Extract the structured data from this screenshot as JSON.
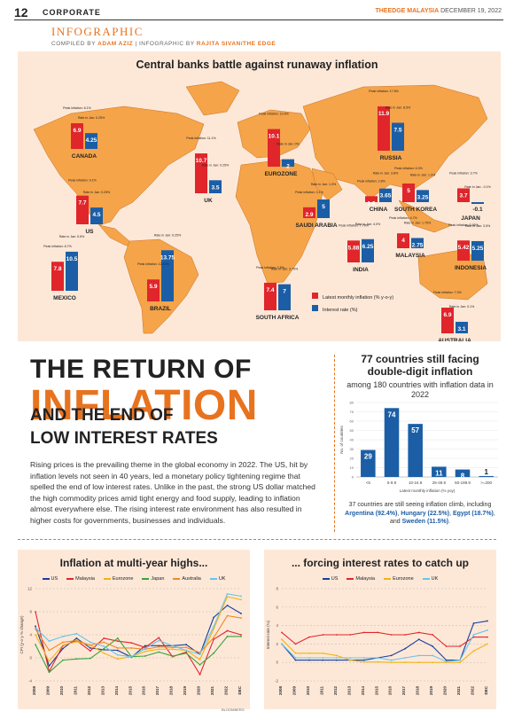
{
  "header": {
    "page_number": "12",
    "section": "CORPORATE",
    "masthead": "THEEDGE MALAYSIA",
    "date": "DECEMBER 19, 2022"
  },
  "kicker": "INFOGRAPHIC",
  "credit": {
    "prefix": "COMPILED BY",
    "compiler": "ADAM AZIZ",
    "mid": "| INFOGRAPHIC BY",
    "designer": "RAJITA SIVAN/THE EDGE"
  },
  "headline": {
    "line1": "THE RETURN OF",
    "line2": "INFLATION",
    "line3": "AND THE END OF",
    "line4": "LOW INTEREST RATES"
  },
  "body": "Rising prices is the prevailing theme in the global economy in 2022. The US, hit by inflation levels not seen in 40 years, led a monetary policy tightening regime that spelled the end of low interest rates. Unlike in the past, the strong US dollar matched the high commodity prices amid tight energy and food supply, leading to inflation almost everywhere else. The rising interest rate environment has also resulted in higher costs for governments, businesses and individuals.",
  "colors": {
    "orange": "#e8731f",
    "red": "#e0252b",
    "blue": "#1b5ea6",
    "map": "#f5a44a",
    "panel": "#fde8d8"
  },
  "chart_data": [
    {
      "type": "bar",
      "title": "Central banks battle against runaway inflation",
      "series": [
        {
          "name": "Latest monthly inflation (% y-o-y)",
          "color": "#e0252b"
        },
        {
          "name": "Interest rate (%)",
          "color": "#1b5ea6"
        }
      ],
      "countries": [
        {
          "name": "CANADA",
          "inflation": 6.9,
          "rate": 4.25,
          "peak_label": "Peak inflation: 8.1%",
          "rate_label": "Rate in Jan: 0.25%"
        },
        {
          "name": "US",
          "inflation": 7.7,
          "rate": 4.5,
          "peak_label": "Peak inflation: 9.1%",
          "rate_label": "Rate in Jan: 0.25%"
        },
        {
          "name": "MEXICO",
          "inflation": 7.8,
          "rate": 10.5,
          "peak_label": "Peak inflation: 8.7%",
          "rate_label": "Rate in Jan: 5.5%"
        },
        {
          "name": "BRAZIL",
          "inflation": 5.9,
          "rate": 13.75,
          "peak_label": "Peak inflation: 12.13%",
          "rate_label": "Rate in Jan: 9.25%"
        },
        {
          "name": "UK",
          "inflation": 10.7,
          "rate": 3.5,
          "peak_label": "Peak inflation: 11.1%",
          "rate_label": "Rate in Jan: 0.25%"
        },
        {
          "name": "EUROZONE",
          "inflation": 10.1,
          "rate": 2,
          "peak_label": "Peak inflation: 10.6%",
          "rate_label": "Rate in Jan: 0%"
        },
        {
          "name": "SAUDI ARABIA",
          "inflation": 2.9,
          "rate": 5,
          "peak_label": "Peak inflation: 3.1%",
          "rate_label": "Rate in Jan: 1.0%"
        },
        {
          "name": "SOUTH AFRICA",
          "inflation": 7.4,
          "rate": 7,
          "peak_label": "Peak inflation: 7.8%",
          "rate_label": "Rate in Jan: 3.75%"
        },
        {
          "name": "RUSSIA",
          "inflation": 11.9,
          "rate": 7.5,
          "peak_label": "Peak inflation: 17.8%",
          "rate_label": "Rate in Jan: 8.5%"
        },
        {
          "name": "CHINA",
          "inflation": 1.6,
          "rate": 3.65,
          "peak_label": "Peak inflation: 2.8%",
          "rate_label": "Rate in Jan: 3.8%"
        },
        {
          "name": "SOUTH KOREA",
          "inflation": 5,
          "rate": 3.25,
          "peak_label": "Peak inflation: 6.3%",
          "rate_label": "Rate in Jan: 1.0%"
        },
        {
          "name": "JAPAN",
          "inflation": 3.7,
          "rate": -0.1,
          "peak_label": "Peak inflation: 3.7%",
          "rate_label": "Rate in Jan: -0.1%"
        },
        {
          "name": "INDIA",
          "inflation": 5.88,
          "rate": 6.25,
          "peak_label": "Peak inflation: 7.79%",
          "rate_label": "Rate in Jan: 4.0%"
        },
        {
          "name": "MALAYSIA",
          "inflation": 4,
          "rate": 2.75,
          "peak_label": "Peak inflation: 4.7%",
          "rate_label": "Rate in Jan: 1.75%"
        },
        {
          "name": "INDONESIA",
          "inflation": 5.42,
          "rate": 5.25,
          "peak_label": "Peak inflation: 5.95%",
          "rate_label": "Rate in Jan: 3.5%"
        },
        {
          "name": "AUSTRALIA",
          "inflation": 6.9,
          "rate": 3.1,
          "peak_label": "Peak inflation: 7.3%",
          "rate_label": "Rate in Jan: 0.1%"
        }
      ]
    },
    {
      "type": "bar",
      "title": "77 countries still facing double-digit inflation",
      "subtitle": "among 180 countries with inflation data in 2022",
      "categories": [
        "<5",
        "5-9.9",
        "10-24.9",
        "25-49.9",
        "50-199.9",
        ">=200"
      ],
      "values": [
        29,
        74,
        57,
        11,
        8,
        1
      ],
      "xlabel": "Latest monthly inflation (% yoy)",
      "ylabel": "No. of countries",
      "ylim": [
        0,
        80
      ],
      "yticks": [
        0,
        10,
        20,
        30,
        40,
        50,
        60,
        70,
        80
      ],
      "note_prefix": "37 countries are still seeing inflation climb, including",
      "note_countries": [
        {
          "name": "Argentina",
          "value": "(92.4%)"
        },
        {
          "name": "Hungary",
          "value": "(22.5%)"
        },
        {
          "name": "Egypt",
          "value": "(18.7%)"
        },
        {
          "name": "Sweden",
          "value": "(11.5%)"
        }
      ]
    },
    {
      "type": "line",
      "title": "Inflation at multi-year highs...",
      "ylabel": "CPI (y-o-y % change)",
      "ylim": [
        -4,
        12
      ],
      "yticks": [
        -4,
        0,
        4,
        8,
        12
      ],
      "x": [
        "2008",
        "2009",
        "2010",
        "2011",
        "2012",
        "2013",
        "2014",
        "2015",
        "2016",
        "2017",
        "2018",
        "2019",
        "2020",
        "2021",
        "2022",
        "DEC"
      ],
      "series": [
        {
          "name": "US",
          "color": "#1b3f9a",
          "values": [
            5.5,
            -1.4,
            1.6,
            3.4,
            1.7,
            1.4,
            1.3,
            0.1,
            2.1,
            2.1,
            2.1,
            2.3,
            0.6,
            7.0,
            9.1,
            7.7
          ]
        },
        {
          "name": "Malaysia",
          "color": "#e0252b",
          "values": [
            8.0,
            -2.4,
            2.1,
            3.0,
            1.2,
            3.4,
            2.9,
            2.6,
            1.8,
            3.5,
            0.2,
            1.0,
            -2.9,
            3.2,
            4.7,
            4.0
          ]
        },
        {
          "name": "Eurozone",
          "color": "#f2b416",
          "values": [
            4.0,
            -0.6,
            2.2,
            2.8,
            2.2,
            0.8,
            -0.2,
            0.2,
            1.1,
            1.5,
            1.5,
            1.3,
            -0.3,
            5.0,
            10.6,
            10.1
          ]
        },
        {
          "name": "Japan",
          "color": "#3aa33a",
          "values": [
            2.3,
            -2.5,
            -0.4,
            -0.2,
            -0.1,
            1.6,
            3.4,
            0.2,
            0.3,
            1.0,
            0.3,
            0.8,
            -1.2,
            0.8,
            3.7,
            3.7
          ]
        },
        {
          "name": "Australia",
          "color": "#f28a1f",
          "values": [
            5.0,
            1.3,
            2.7,
            3.0,
            2.2,
            2.7,
            1.7,
            1.7,
            1.5,
            1.9,
            1.8,
            1.8,
            0.9,
            3.5,
            7.3,
            6.9
          ]
        },
        {
          "name": "UK",
          "color": "#6cc3ea",
          "values": [
            5.2,
            2.9,
            3.7,
            4.2,
            2.7,
            2.0,
            0.5,
            0.2,
            1.6,
            3.0,
            2.1,
            1.3,
            0.6,
            5.4,
            11.1,
            10.7
          ]
        }
      ],
      "source": "BLOOMBERG"
    },
    {
      "type": "line",
      "title": "... forcing interest rates to catch up",
      "ylabel": "Interest rate (%)",
      "ylim": [
        -2,
        8
      ],
      "yticks": [
        -2,
        0,
        2,
        4,
        6,
        8
      ],
      "x": [
        "2008",
        "2009",
        "2010",
        "2011",
        "2012",
        "2013",
        "2014",
        "2015",
        "2016",
        "2017",
        "2018",
        "2019",
        "2020",
        "2021",
        "2022",
        "DEC"
      ],
      "series": [
        {
          "name": "US",
          "color": "#1b3f9a",
          "values": [
            2.0,
            0.25,
            0.25,
            0.25,
            0.25,
            0.25,
            0.25,
            0.5,
            0.75,
            1.5,
            2.5,
            1.75,
            0.25,
            0.25,
            4.25,
            4.5
          ]
        },
        {
          "name": "Malaysia",
          "color": "#e0252b",
          "values": [
            3.25,
            2.0,
            2.75,
            3.0,
            3.0,
            3.0,
            3.25,
            3.25,
            3.0,
            3.0,
            3.25,
            3.0,
            1.75,
            1.75,
            2.75,
            2.75
          ]
        },
        {
          "name": "Eurozone",
          "color": "#f2b416",
          "values": [
            2.5,
            1.0,
            1.0,
            1.0,
            0.75,
            0.25,
            0.05,
            0.05,
            0.0,
            0.0,
            0.0,
            0.0,
            0.0,
            0.0,
            1.25,
            2.0
          ]
        },
        {
          "name": "UK",
          "color": "#6cc3ea",
          "values": [
            2.0,
            0.5,
            0.5,
            0.5,
            0.5,
            0.5,
            0.5,
            0.5,
            0.25,
            0.5,
            0.75,
            0.75,
            0.1,
            0.25,
            3.0,
            3.5
          ]
        }
      ]
    }
  ]
}
